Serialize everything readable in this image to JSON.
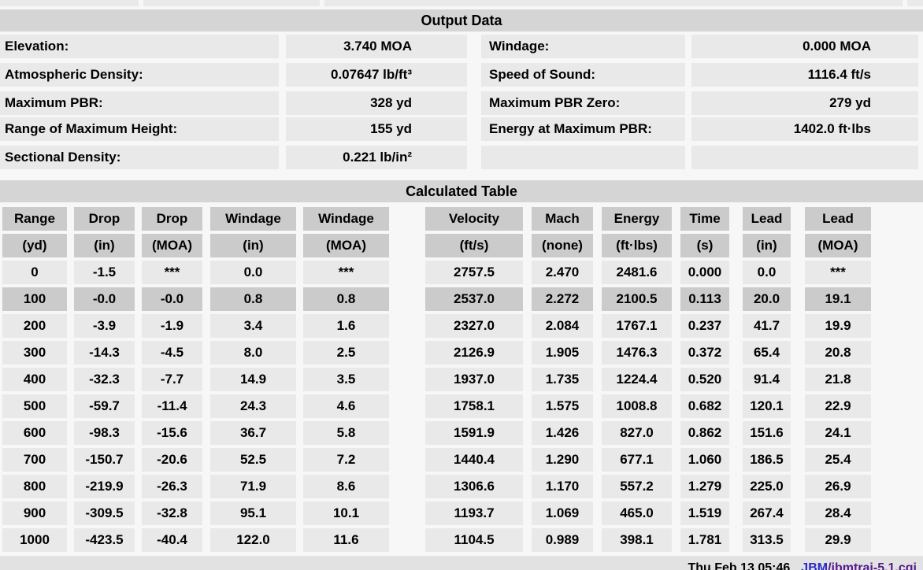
{
  "output_data": {
    "title": "Output Data",
    "groups": [
      {
        "rows": [
          {
            "label1": "Elevation:",
            "value1": "3.740 MOA",
            "label2": "Windage:",
            "value2": "0.000 MOA"
          }
        ]
      },
      {
        "rows": [
          {
            "label1": "Atmospheric Density:",
            "value1": "0.07647 lb/ft³",
            "label2": "Speed of Sound:",
            "value2": "1116.4 ft/s"
          }
        ]
      },
      {
        "rows": [
          {
            "label1": "Maximum PBR:",
            "value1": "328 yd",
            "label2": "Maximum PBR Zero:",
            "value2": "279 yd"
          },
          {
            "label1": "Range of Maximum Height:",
            "value1": "155 yd",
            "label2": "Energy at Maximum PBR:",
            "value2": "1402.0 ft·lbs"
          }
        ]
      },
      {
        "rows": [
          {
            "label1": "Sectional Density:",
            "value1": "0.221 lb/in²",
            "label2": "",
            "value2": ""
          }
        ]
      }
    ]
  },
  "calculated_table": {
    "title": "Calculated Table",
    "columns": [
      {
        "name": "Range",
        "unit": "(yd)"
      },
      {
        "name": "Drop",
        "unit": "(in)"
      },
      {
        "name": "Drop",
        "unit": "(MOA)"
      },
      {
        "name": "Windage",
        "unit": "(in)"
      },
      {
        "name": "Windage",
        "unit": "(MOA)"
      },
      {
        "name": "Velocity",
        "unit": "(ft/s)"
      },
      {
        "name": "Mach",
        "unit": "(none)"
      },
      {
        "name": "Energy",
        "unit": "(ft·lbs)"
      },
      {
        "name": "Time",
        "unit": "(s)"
      },
      {
        "name": "Lead",
        "unit": "(in)"
      },
      {
        "name": "Lead",
        "unit": "(MOA)"
      }
    ],
    "highlighted_row_index": 1,
    "rows": [
      [
        "0",
        "-1.5",
        "***",
        "0.0",
        "***",
        "2757.5",
        "2.470",
        "2481.6",
        "0.000",
        "0.0",
        "***"
      ],
      [
        "100",
        "-0.0",
        "-0.0",
        "0.8",
        "0.8",
        "2537.0",
        "2.272",
        "2100.5",
        "0.113",
        "20.0",
        "19.1"
      ],
      [
        "200",
        "-3.9",
        "-1.9",
        "3.4",
        "1.6",
        "2327.0",
        "2.084",
        "1767.1",
        "0.237",
        "41.7",
        "19.9"
      ],
      [
        "300",
        "-14.3",
        "-4.5",
        "8.0",
        "2.5",
        "2126.9",
        "1.905",
        "1476.3",
        "0.372",
        "65.4",
        "20.8"
      ],
      [
        "400",
        "-32.3",
        "-7.7",
        "14.9",
        "3.5",
        "1937.0",
        "1.735",
        "1224.4",
        "0.520",
        "91.4",
        "21.8"
      ],
      [
        "500",
        "-59.7",
        "-11.4",
        "24.3",
        "4.6",
        "1758.1",
        "1.575",
        "1008.8",
        "0.682",
        "120.1",
        "22.9"
      ],
      [
        "600",
        "-98.3",
        "-15.6",
        "36.7",
        "5.8",
        "1591.9",
        "1.426",
        "827.0",
        "0.862",
        "151.6",
        "24.1"
      ],
      [
        "700",
        "-150.7",
        "-20.6",
        "52.5",
        "7.2",
        "1440.4",
        "1.290",
        "677.1",
        "1.060",
        "186.5",
        "25.4"
      ],
      [
        "800",
        "-219.9",
        "-26.3",
        "71.9",
        "8.6",
        "1306.6",
        "1.170",
        "557.2",
        "1.279",
        "225.0",
        "26.9"
      ],
      [
        "900",
        "-309.5",
        "-32.8",
        "95.1",
        "10.1",
        "1193.7",
        "1.069",
        "465.0",
        "1.519",
        "267.4",
        "28.4"
      ],
      [
        "1000",
        "-423.5",
        "-40.4",
        "122.0",
        "11.6",
        "1104.5",
        "0.989",
        "398.1",
        "1.781",
        "313.5",
        "29.9"
      ]
    ]
  },
  "footer": {
    "timestamp": "Thu Feb 13 05:46",
    "link_primary": "JBM",
    "link_secondary": "/jbmtraj-5.1.cgi"
  },
  "colors": {
    "section_bar": "#d5d5d5",
    "cell": "#e9e9e9",
    "header_cell": "#cbcbcb",
    "highlight_row": "#cbcbcb",
    "footer_bar": "#e2e2e2",
    "link_blue": "#2b2bc8",
    "link_purple": "#551a8b"
  }
}
